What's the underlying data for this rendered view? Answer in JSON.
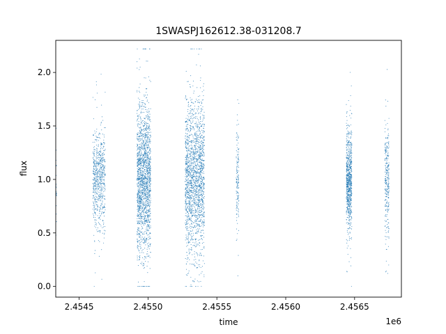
{
  "chart_data": {
    "type": "scatter",
    "title": "1SWASPJ162612.38-031208.7",
    "xlabel": "time",
    "ylabel": "flux",
    "x_offset_label": "1e6",
    "xlim": [
      2454330,
      2456840
    ],
    "ylim": [
      -0.1,
      2.3
    ],
    "xticks": [
      2.4545,
      2.455,
      2.4555,
      2.456,
      2.4565
    ],
    "xtick_labels": [
      "2.4545",
      "2.4550",
      "2.4555",
      "2.4560",
      "2.4565"
    ],
    "yticks": [
      0.0,
      0.5,
      1.0,
      1.5,
      2.0
    ],
    "ytick_labels": [
      "0.0",
      "0.5",
      "1.0",
      "1.5",
      "2.0"
    ],
    "grid": false,
    "marker_color": "#1f77b4",
    "observing_seasons": [
      {
        "x_start": 2454332,
        "x_end": 2454336,
        "flux_center": 1.0,
        "flux_spread": 0.45,
        "n": 20
      },
      {
        "x_start": 2454600,
        "x_end": 2454690,
        "flux_center": 1.0,
        "flux_spread": 0.55,
        "n": 700
      },
      {
        "x_start": 2454920,
        "x_end": 2455020,
        "flux_center": 1.0,
        "flux_spread": 0.85,
        "n": 1800
      },
      {
        "x_start": 2455270,
        "x_end": 2455410,
        "flux_center": 1.0,
        "flux_spread": 0.85,
        "n": 1900
      },
      {
        "x_start": 2455640,
        "x_end": 2455660,
        "flux_center": 1.0,
        "flux_spread": 0.55,
        "n": 150
      },
      {
        "x_start": 2456440,
        "x_end": 2456480,
        "flux_center": 1.0,
        "flux_spread": 0.55,
        "n": 800
      },
      {
        "x_start": 2456720,
        "x_end": 2456750,
        "flux_center": 1.0,
        "flux_spread": 0.65,
        "n": 300
      }
    ]
  }
}
